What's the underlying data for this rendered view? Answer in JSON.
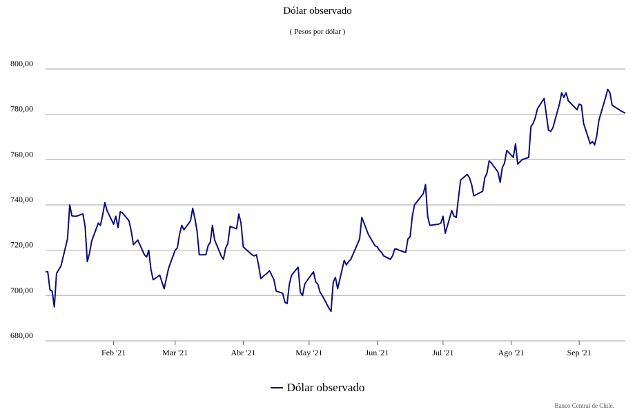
{
  "chart_data": {
    "type": "line",
    "title": "Dólar observado",
    "subtitle": "( Pesos por dólar )",
    "ylim": [
      680,
      800
    ],
    "yticks": [
      680,
      700,
      720,
      740,
      760,
      780,
      800
    ],
    "ytick_labels": [
      "680,00",
      "700,00",
      "720,00",
      "740,00",
      "760,00",
      "780,00",
      "800,00"
    ],
    "xticks": [
      {
        "x": "2021-02-01",
        "label": "Feb '21"
      },
      {
        "x": "2021-03-01",
        "label": "Mar '21"
      },
      {
        "x": "2021-04-01",
        "label": "Abr '21"
      },
      {
        "x": "2021-05-01",
        "label": "May '21"
      },
      {
        "x": "2021-06-01",
        "label": "Jun '21"
      },
      {
        "x": "2021-07-01",
        "label": "Jul '21"
      },
      {
        "x": "2021-08-01",
        "label": "Ago '21"
      },
      {
        "x": "2021-09-01",
        "label": "Sep '21"
      }
    ],
    "xlim": [
      "2021-01-01",
      "2021-09-22"
    ],
    "grid": "horizontal",
    "legend_position": "bottom",
    "series": [
      {
        "name": "Dólar observado",
        "color": "#0b0b7a",
        "x": [
          "2021-01-01",
          "2021-01-02",
          "2021-01-03",
          "2021-01-04",
          "2021-01-05",
          "2021-01-06",
          "2021-01-08",
          "2021-01-11",
          "2021-01-12",
          "2021-01-13",
          "2021-01-14",
          "2021-01-15",
          "2021-01-18",
          "2021-01-19",
          "2021-01-20",
          "2021-01-21",
          "2021-01-22",
          "2021-01-25",
          "2021-01-26",
          "2021-01-27",
          "2021-01-28",
          "2021-01-29",
          "2021-02-01",
          "2021-02-02",
          "2021-02-03",
          "2021-02-04",
          "2021-02-05",
          "2021-02-08",
          "2021-02-09",
          "2021-02-10",
          "2021-02-11",
          "2021-02-12",
          "2021-02-15",
          "2021-02-16",
          "2021-02-17",
          "2021-02-18",
          "2021-02-19",
          "2021-02-22",
          "2021-02-23",
          "2021-02-24",
          "2021-02-25",
          "2021-02-26",
          "2021-03-01",
          "2021-03-02",
          "2021-03-03",
          "2021-03-04",
          "2021-03-05",
          "2021-03-08",
          "2021-03-09",
          "2021-03-10",
          "2021-03-11",
          "2021-03-12",
          "2021-03-15",
          "2021-03-16",
          "2021-03-17",
          "2021-03-18",
          "2021-03-19",
          "2021-03-22",
          "2021-03-23",
          "2021-03-24",
          "2021-03-25",
          "2021-03-26",
          "2021-03-29",
          "2021-03-30",
          "2021-03-31",
          "2021-04-01",
          "2021-04-05",
          "2021-04-06",
          "2021-04-07",
          "2021-04-08",
          "2021-04-09",
          "2021-04-12",
          "2021-04-13",
          "2021-04-14",
          "2021-04-15",
          "2021-04-16",
          "2021-04-19",
          "2021-04-20",
          "2021-04-21",
          "2021-04-22",
          "2021-04-23",
          "2021-04-26",
          "2021-04-27",
          "2021-04-28",
          "2021-04-29",
          "2021-04-30",
          "2021-05-03",
          "2021-05-04",
          "2021-05-05",
          "2021-05-06",
          "2021-05-07",
          "2021-05-10",
          "2021-05-11",
          "2021-05-12",
          "2021-05-13",
          "2021-05-14",
          "2021-05-17",
          "2021-05-18",
          "2021-05-19",
          "2021-05-20",
          "2021-05-24",
          "2021-05-25",
          "2021-05-26",
          "2021-05-27",
          "2021-05-28",
          "2021-05-31",
          "2021-06-01",
          "2021-06-02",
          "2021-06-03",
          "2021-06-04",
          "2021-06-07",
          "2021-06-08",
          "2021-06-09",
          "2021-06-10",
          "2021-06-11",
          "2021-06-14",
          "2021-06-15",
          "2021-06-16",
          "2021-06-17",
          "2021-06-18",
          "2021-06-22",
          "2021-06-23",
          "2021-06-24",
          "2021-06-25",
          "2021-06-29",
          "2021-06-30",
          "2021-07-01",
          "2021-07-02",
          "2021-07-05",
          "2021-07-06",
          "2021-07-07",
          "2021-07-08",
          "2021-07-09",
          "2021-07-12",
          "2021-07-13",
          "2021-07-14",
          "2021-07-15",
          "2021-07-19",
          "2021-07-20",
          "2021-07-21",
          "2021-07-22",
          "2021-07-23",
          "2021-07-26",
          "2021-07-27",
          "2021-07-28",
          "2021-07-29",
          "2021-07-30",
          "2021-08-02",
          "2021-08-03",
          "2021-08-04",
          "2021-08-05",
          "2021-08-06",
          "2021-08-09",
          "2021-08-10",
          "2021-08-11",
          "2021-08-12",
          "2021-08-13",
          "2021-08-16",
          "2021-08-17",
          "2021-08-18",
          "2021-08-19",
          "2021-08-20",
          "2021-08-23",
          "2021-08-24",
          "2021-08-25",
          "2021-08-26",
          "2021-08-27",
          "2021-08-30",
          "2021-08-31",
          "2021-09-01",
          "2021-09-02",
          "2021-09-03",
          "2021-09-06",
          "2021-09-07",
          "2021-09-08",
          "2021-09-09",
          "2021-09-10",
          "2021-09-13",
          "2021-09-14",
          "2021-09-15",
          "2021-09-16",
          "2021-09-20",
          "2021-09-21",
          "2021-09-22"
        ],
        "values": [
          710.5,
          710.5,
          702.5,
          702.0,
          695.0,
          709.8,
          713.0,
          725.0,
          740.0,
          735.2,
          735.0,
          735.0,
          736.0,
          730.5,
          715.0,
          718.5,
          724.0,
          732.0,
          731.0,
          735.5,
          741.0,
          737.5,
          731.5,
          735.0,
          730.0,
          737.0,
          736.5,
          733.0,
          728.5,
          722.5,
          723.5,
          724.5,
          718.0,
          717.0,
          720.0,
          711.5,
          707.0,
          709.0,
          706.0,
          703.0,
          707.5,
          712.0,
          720.0,
          721.0,
          727.0,
          731.0,
          729.0,
          733.0,
          738.5,
          734.0,
          728.5,
          718.0,
          718.0,
          722.0,
          723.5,
          731.0,
          724.5,
          717.5,
          716.0,
          721.0,
          723.0,
          730.5,
          729.5,
          736.0,
          732.0,
          721.5,
          718.0,
          717.5,
          718.0,
          713.5,
          707.5,
          710.0,
          711.0,
          709.0,
          707.0,
          702.0,
          701.0,
          697.0,
          696.5,
          705.0,
          709.0,
          712.5,
          701.5,
          700.0,
          705.0,
          706.5,
          710.5,
          706.0,
          705.0,
          701.5,
          700.0,
          694.5,
          693.0,
          706.0,
          708.0,
          703.0,
          715.5,
          713.5,
          715.0,
          716.0,
          725.0,
          734.5,
          732.0,
          729.5,
          727.0,
          722.0,
          721.5,
          720.0,
          719.0,
          717.5,
          716.0,
          717.5,
          720.5,
          720.5,
          720.0,
          719.0,
          725.0,
          726.0,
          735.0,
          740.0,
          745.0,
          749.0,
          735.0,
          731.0,
          731.5,
          732.0,
          735.0,
          727.5,
          737.5,
          735.0,
          734.5,
          743.0,
          751.0,
          753.5,
          752.0,
          749.0,
          744.0,
          746.0,
          752.0,
          754.0,
          759.5,
          758.5,
          754.5,
          750.0,
          756.5,
          758.5,
          764.0,
          761.0,
          767.0,
          758.0,
          759.0,
          760.0,
          761.0,
          774.5,
          776.0,
          778.5,
          782.5,
          787.0,
          780.0,
          773.0,
          772.5,
          774.0,
          784.5,
          789.5,
          787.5,
          789.5,
          786.0,
          783.0,
          782.0,
          784.5,
          784.0,
          776.0,
          767.0,
          768.0,
          766.5,
          770.5,
          777.5,
          787.5,
          791.0,
          789.5,
          784.0,
          781.5,
          781.0,
          780.5
        ]
      }
    ],
    "source_note": "Banco Central de Chile."
  }
}
